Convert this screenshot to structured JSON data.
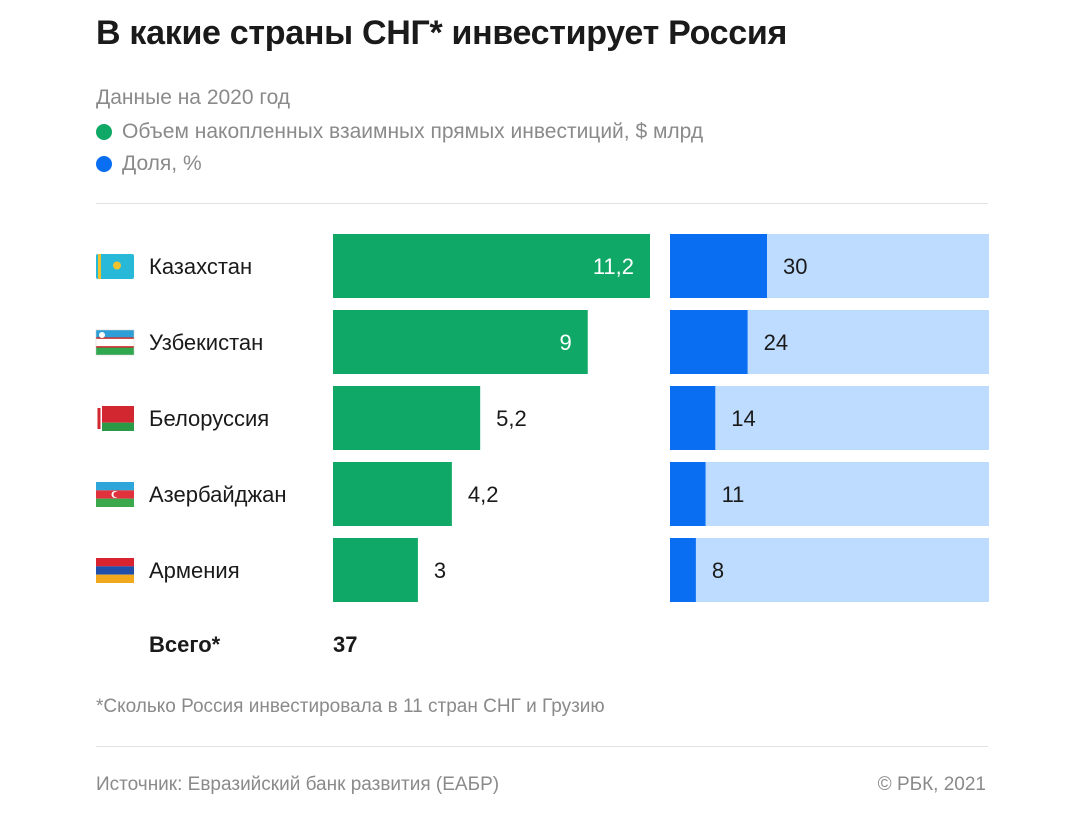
{
  "title": "В какие страны СНГ* инвестирует Россия",
  "subtitle": "Данные на 2020 год",
  "legend": [
    {
      "label": "Объем накопленных взаимных прямых инвестиций, $ млрд",
      "color": "#10a866"
    },
    {
      "label": "Доля, %",
      "color": "#0a6ef2"
    }
  ],
  "total": {
    "label": "Всего*",
    "value": "37"
  },
  "footnote": "*Сколько Россия инвестировала в 11 стран СНГ и Грузию",
  "source": "Источник: Евразийский банк развития (ЕАБР)",
  "copyright": "© РБК, 2021",
  "chart_data": {
    "type": "bar",
    "categories": [
      "Казахстан",
      "Узбекистан",
      "Белоруссия",
      "Азербайджан",
      "Армения"
    ],
    "flags": [
      "kazakhstan-flag-icon",
      "uzbekistan-flag-icon",
      "belarus-flag-icon",
      "azerbaijan-flag-icon",
      "armenia-flag-icon"
    ],
    "series": [
      {
        "name": "Объем накопленных взаимных прямых инвестиций, $ млрд",
        "values": [
          11.2,
          9,
          5.2,
          4.2,
          3
        ],
        "labels": [
          "11,2",
          "9",
          "5,2",
          "4,2",
          "3"
        ],
        "color": "#10a866"
      },
      {
        "name": "Доля, %",
        "values": [
          30,
          24,
          14,
          11,
          8
        ],
        "labels": [
          "30",
          "24",
          "14",
          "11",
          "8"
        ],
        "color": "#0a6ef2",
        "background": "#bddcff"
      }
    ]
  }
}
